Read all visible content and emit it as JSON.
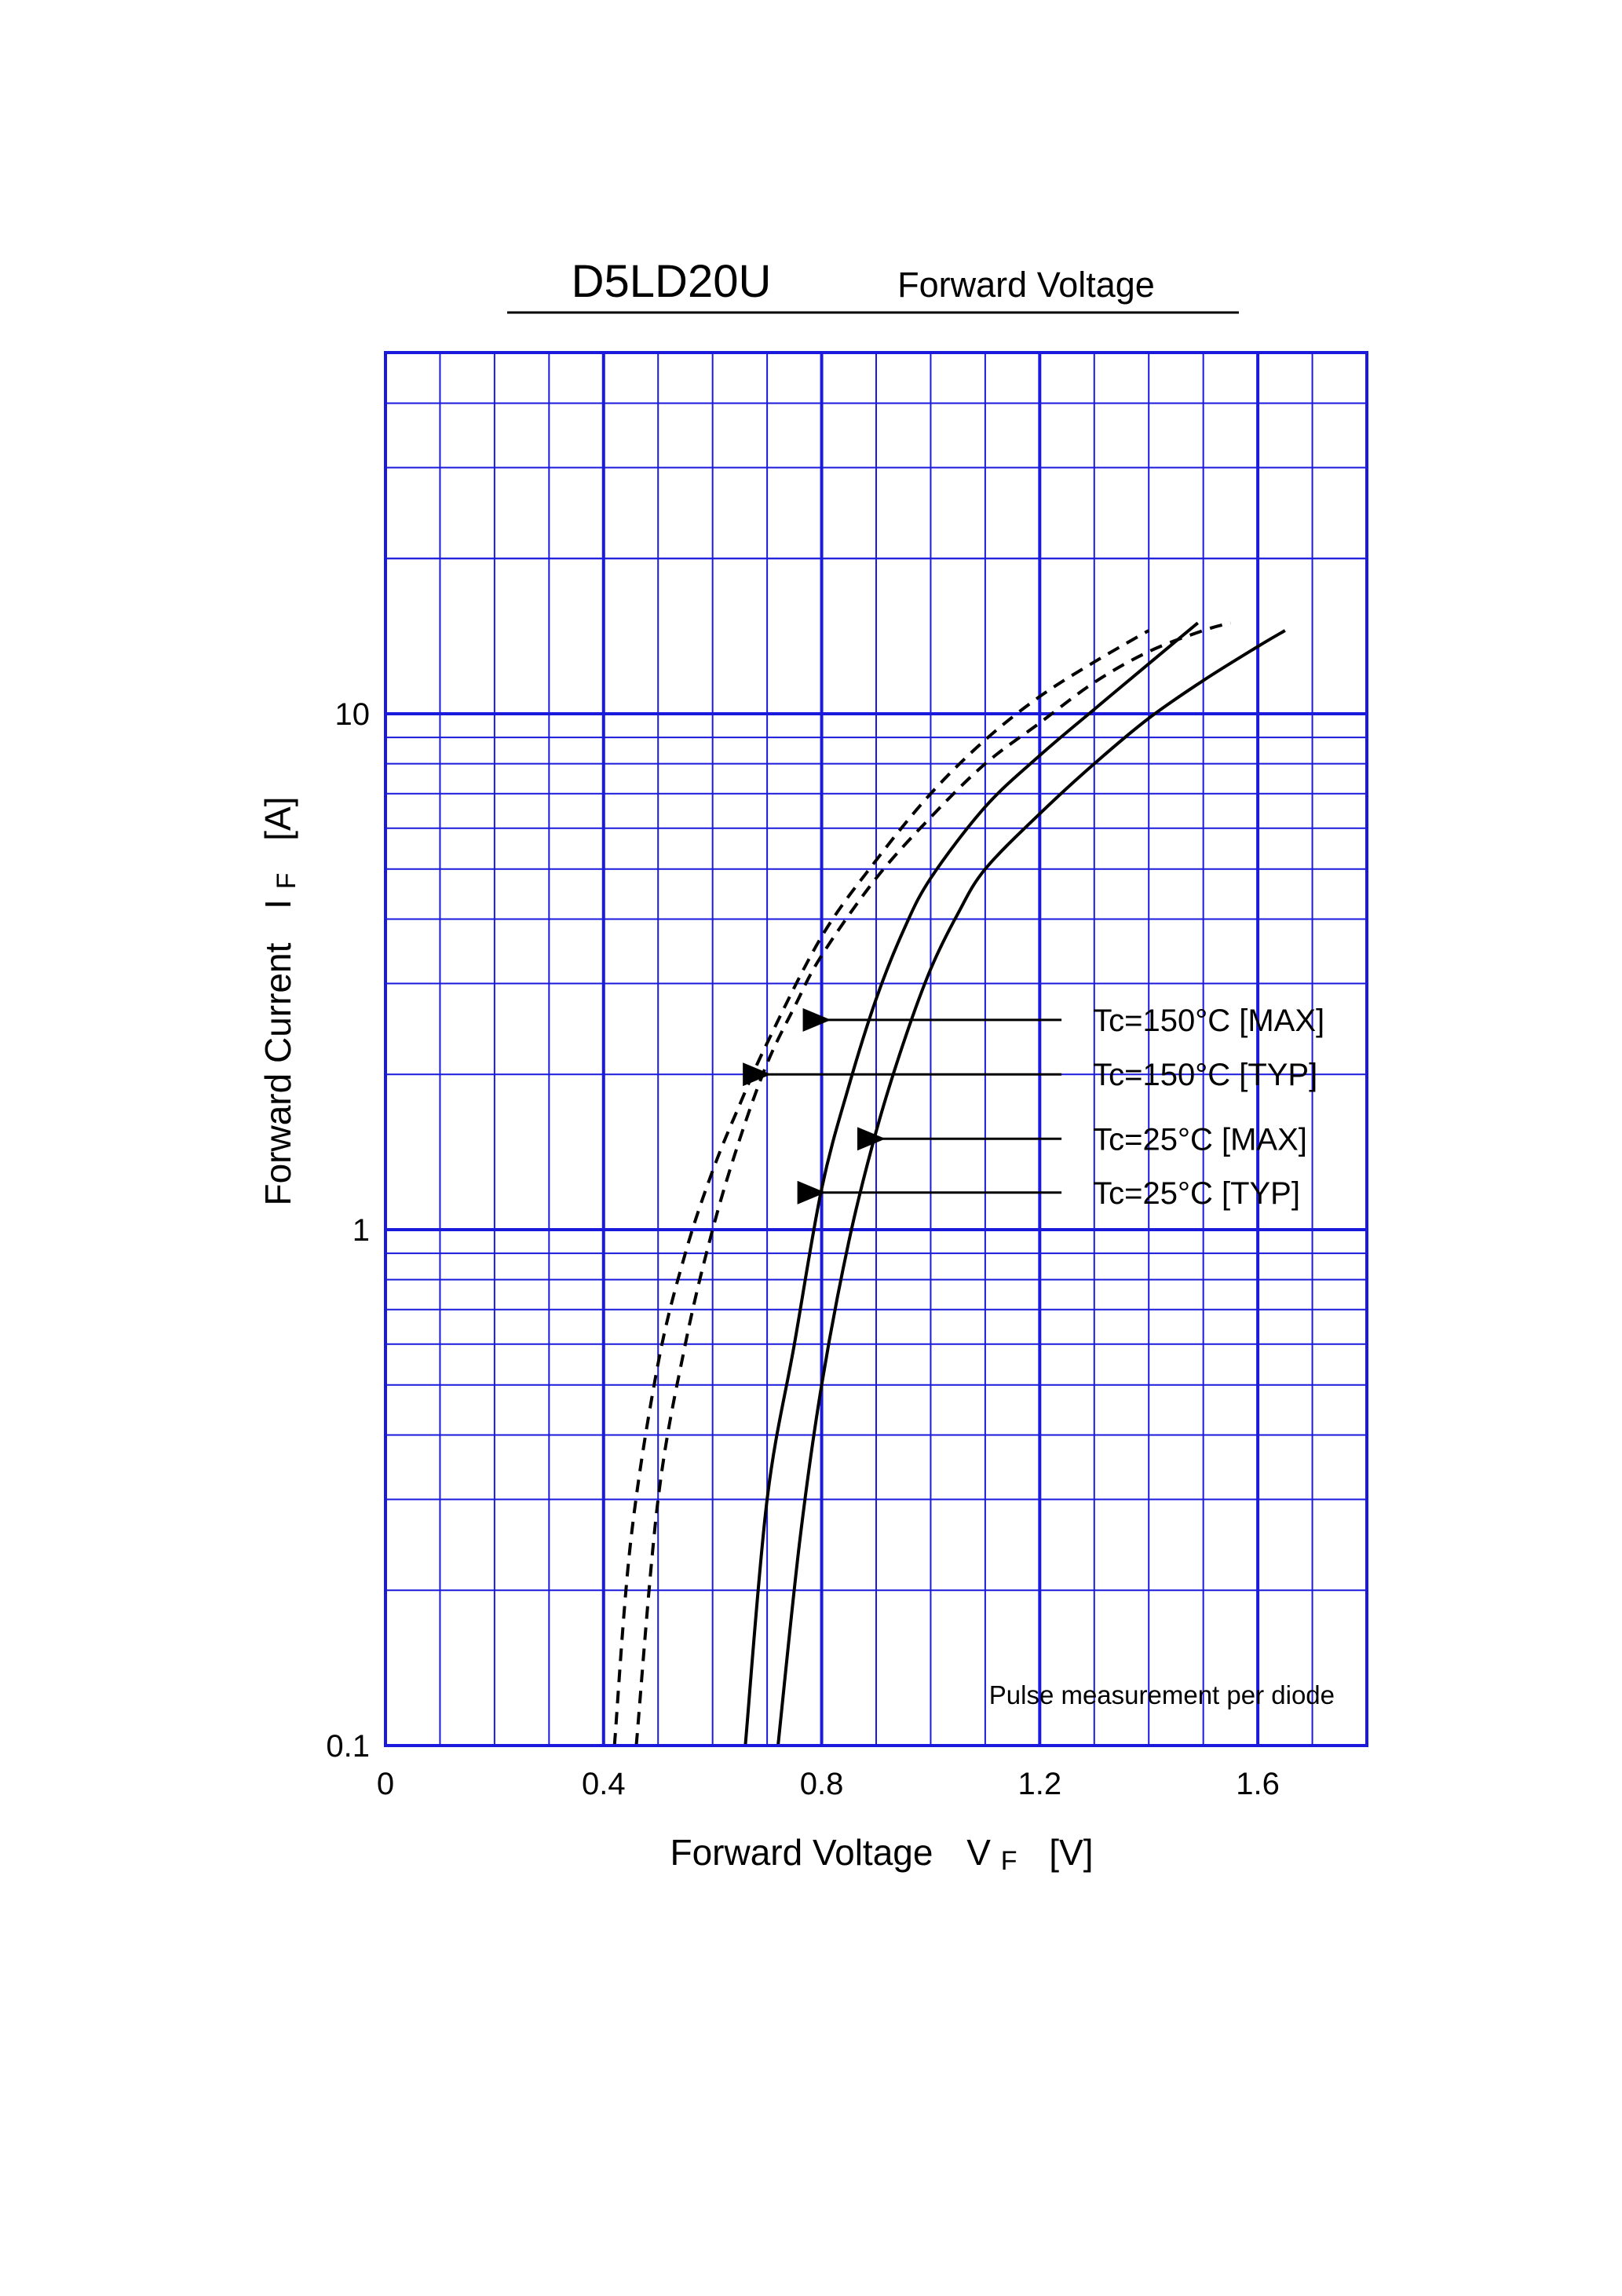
{
  "header": {
    "part_number": "D5LD20U",
    "subtitle": "Forward Voltage"
  },
  "chart_data": {
    "type": "line",
    "title": "D5LD20U",
    "subtitle": "Forward Voltage",
    "xlabel": "Forward Voltage",
    "xlabel_symbol": "V",
    "xlabel_subscript": "F",
    "xlabel_unit": "[V]",
    "ylabel": "Forward Current",
    "ylabel_symbol": "I",
    "ylabel_subscript": "F",
    "ylabel_unit": "[A]",
    "x_scale": "linear",
    "y_scale": "log",
    "xlim": [
      0,
      1.8
    ],
    "ylim": [
      0.1,
      50
    ],
    "x_ticks": [
      0,
      0.4,
      0.8,
      1.2,
      1.6
    ],
    "x_tick_labels": [
      "0",
      "0.4",
      "0.8",
      "1.2",
      "1.6"
    ],
    "y_ticks": [
      0.1,
      1,
      10
    ],
    "y_tick_labels": [
      "0.1",
      "1",
      "10"
    ],
    "grid": true,
    "grid_color": "#1a1adc",
    "note": "Pulse measurement per diode",
    "series": [
      {
        "name": "Tc=150°C [MAX]",
        "style": "dashed",
        "color": "#000000",
        "points": [
          [
            0.46,
            0.1
          ],
          [
            0.5,
            0.3
          ],
          [
            0.55,
            0.6
          ],
          [
            0.6,
            1.0
          ],
          [
            0.65,
            1.5
          ],
          [
            0.7,
            2.1
          ],
          [
            0.75,
            2.7
          ],
          [
            0.8,
            3.4
          ],
          [
            0.9,
            4.8
          ],
          [
            1.0,
            6.3
          ],
          [
            1.1,
            8.0
          ],
          [
            1.2,
            9.6
          ],
          [
            1.3,
            11.5
          ],
          [
            1.4,
            13.2
          ],
          [
            1.5,
            14.5
          ],
          [
            1.55,
            15.0
          ]
        ],
        "label_arrow_at": [
          0.8,
          2.55
        ]
      },
      {
        "name": "Tc=150°C [TYP]",
        "style": "dashed",
        "color": "#000000",
        "points": [
          [
            0.42,
            0.1
          ],
          [
            0.45,
            0.25
          ],
          [
            0.5,
            0.55
          ],
          [
            0.55,
            0.9
          ],
          [
            0.6,
            1.3
          ],
          [
            0.65,
            1.75
          ],
          [
            0.7,
            2.3
          ],
          [
            0.8,
            3.7
          ],
          [
            0.9,
            5.2
          ],
          [
            1.0,
            7.0
          ],
          [
            1.1,
            8.9
          ],
          [
            1.2,
            10.8
          ],
          [
            1.3,
            12.6
          ],
          [
            1.4,
            14.5
          ]
        ],
        "label_arrow_at": [
          0.69,
          2.0
        ]
      },
      {
        "name": "Tc=25°C [MAX]",
        "style": "solid",
        "color": "#000000",
        "points": [
          [
            0.72,
            0.1
          ],
          [
            0.76,
            0.25
          ],
          [
            0.8,
            0.5
          ],
          [
            0.85,
            0.95
          ],
          [
            0.9,
            1.55
          ],
          [
            0.95,
            2.3
          ],
          [
            1.0,
            3.2
          ],
          [
            1.05,
            4.1
          ],
          [
            1.1,
            5.0
          ],
          [
            1.2,
            6.4
          ],
          [
            1.3,
            8.0
          ],
          [
            1.4,
            9.8
          ],
          [
            1.5,
            11.6
          ],
          [
            1.6,
            13.5
          ],
          [
            1.65,
            14.5
          ]
        ],
        "label_arrow_at": [
          0.9,
          1.5
        ]
      },
      {
        "name": "Tc=25°C [TYP]",
        "style": "solid",
        "color": "#000000",
        "points": [
          [
            0.66,
            0.1
          ],
          [
            0.7,
            0.3
          ],
          [
            0.75,
            0.6
          ],
          [
            0.8,
            1.2
          ],
          [
            0.85,
            1.9
          ],
          [
            0.9,
            2.8
          ],
          [
            0.95,
            3.8
          ],
          [
            1.0,
            4.8
          ],
          [
            1.1,
            6.6
          ],
          [
            1.2,
            8.3
          ],
          [
            1.3,
            10.2
          ],
          [
            1.4,
            12.5
          ],
          [
            1.49,
            15.0
          ]
        ],
        "label_arrow_at": [
          0.79,
          1.18
        ]
      }
    ],
    "legend_arrow_start_x": 1.24
  }
}
